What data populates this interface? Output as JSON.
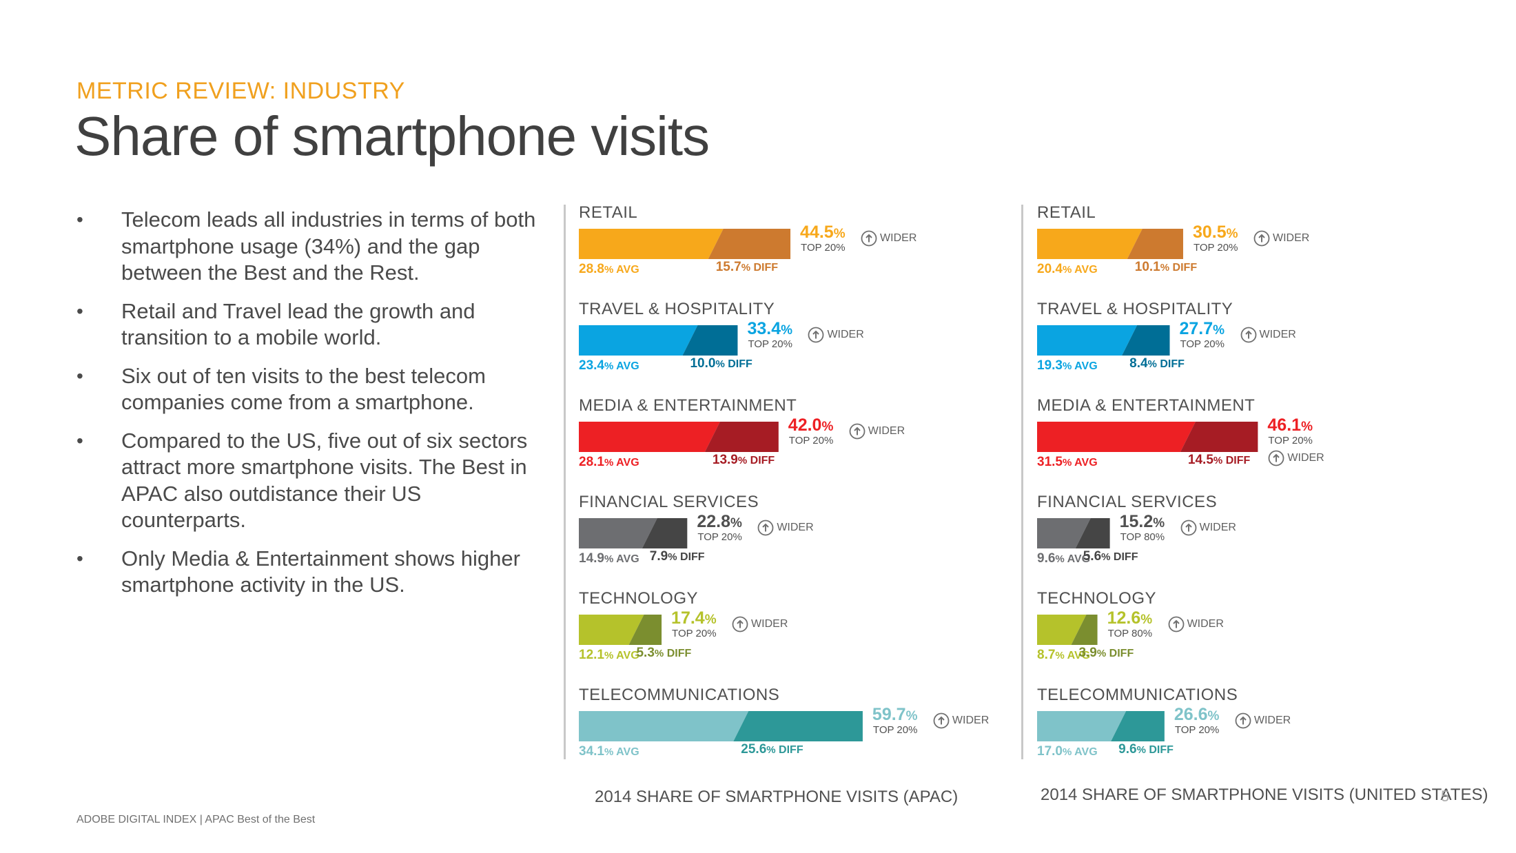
{
  "header": {
    "kicker": "METRIC REVIEW: INDUSTRY",
    "title": "Share of smartphone visits"
  },
  "bullets": [
    "Telecom leads all industries in terms of both smartphone usage (34%) and the gap between the Best and the Rest.",
    "Retail and Travel lead the growth and transition to a mobile world.",
    "Six out of ten visits to the best telecom companies come from a smartphone.",
    "Compared to the US, five out of six sectors attract more smartphone visits.  The Best in APAC also outdistance their US counterparts.",
    "Only Media & Entertainment shows higher smartphone activity in the US."
  ],
  "bullet_symbol": "•",
  "footer": "ADOBE DIGITAL INDEX | APAC Best of the Best",
  "page_number": "5",
  "chart_data": [
    {
      "type": "bar",
      "title": "2014 SHARE OF SMARTPHONE VISITS (APAC)",
      "series": [
        {
          "name": "AVG",
          "unit": "%"
        },
        {
          "name": "DIFF",
          "unit": "%"
        },
        {
          "name": "TOP",
          "unit": "%"
        }
      ],
      "categories": [
        {
          "name": "RETAIL",
          "avg": 28.8,
          "diff": 15.7,
          "top": 44.5,
          "top_label": "TOP 20%",
          "wider": "WIDER",
          "color": "#f7a81b",
          "dark": "#cd7a2f",
          "avg_text": "28.8",
          "diff_text": "15.7",
          "top_text": "44.5"
        },
        {
          "name": "TRAVEL & HOSPITALITY",
          "avg": 23.4,
          "diff": 10.0,
          "top": 33.4,
          "top_label": "TOP 20%",
          "wider": "WIDER",
          "color": "#0aa4e1",
          "dark": "#006e96",
          "avg_text": "23.4",
          "diff_text": "10.0",
          "top_text": "33.4"
        },
        {
          "name": "MEDIA & ENTERTAINMENT",
          "avg": 28.1,
          "diff": 13.9,
          "top": 42.0,
          "top_label": "TOP 20%",
          "wider": "WIDER",
          "color": "#ed2024",
          "dark": "#a61c24",
          "avg_text": "28.1",
          "diff_text": "13.9",
          "top_text": "42.0"
        },
        {
          "name": "FINANCIAL SERVICES",
          "avg": 14.9,
          "diff": 7.9,
          "top": 22.8,
          "top_label": "TOP 20%",
          "wider": "WIDER",
          "color": "#6d6e71",
          "dark": "#454545",
          "avg_text": "14.9",
          "diff_text": "7.9",
          "top_text": "22.8"
        },
        {
          "name": "TECHNOLOGY",
          "avg": 12.1,
          "diff": 5.3,
          "top": 17.4,
          "top_label": "TOP 20%",
          "wider": "WIDER",
          "color": "#b5c22b",
          "dark": "#7b8e2f",
          "avg_text": "12.1",
          "diff_text": "5.3",
          "top_text": "17.4"
        },
        {
          "name": "TELECOMMUNICATIONS",
          "avg": 34.1,
          "diff": 25.6,
          "top": 59.7,
          "top_label": "TOP 20%",
          "wider": "WIDER",
          "color": "#7fc3c9",
          "dark": "#2d9898",
          "avg_text": "34.1",
          "diff_text": "25.6",
          "top_text": "59.7"
        }
      ]
    },
    {
      "type": "bar",
      "title": "2014 SHARE OF SMARTPHONE VISITS (UNITED STATES)",
      "series": [
        {
          "name": "AVG",
          "unit": "%"
        },
        {
          "name": "DIFF",
          "unit": "%"
        },
        {
          "name": "TOP",
          "unit": "%"
        }
      ],
      "categories": [
        {
          "name": "RETAIL",
          "avg": 20.4,
          "diff": 10.1,
          "top": 30.5,
          "top_label": "TOP 20%",
          "wider": "WIDER",
          "color": "#f7a81b",
          "dark": "#cd7a2f",
          "avg_text": "20.4",
          "diff_text": "10.1",
          "top_text": "30.5"
        },
        {
          "name": "TRAVEL & HOSPITALITY",
          "avg": 19.3,
          "diff": 8.4,
          "top": 27.7,
          "top_label": "TOP 20%",
          "wider": "WIDER",
          "color": "#0aa4e1",
          "dark": "#006e96",
          "avg_text": "19.3",
          "diff_text": "8.4",
          "top_text": "27.7"
        },
        {
          "name": "MEDIA & ENTERTAINMENT",
          "avg": 31.5,
          "diff": 14.5,
          "top": 46.1,
          "top_label": "TOP 20%",
          "wider": "WIDER",
          "color": "#ed2024",
          "dark": "#a61c24",
          "avg_text": "31.5",
          "diff_text": "14.5",
          "top_text": "46.1"
        },
        {
          "name": "FINANCIAL SERVICES",
          "avg": 9.6,
          "diff": 5.6,
          "top": 15.2,
          "top_label": "TOP 80%",
          "wider": "WIDER",
          "color": "#6d6e71",
          "dark": "#454545",
          "avg_text": "9.6",
          "diff_text": "5.6",
          "top_text": "15.2"
        },
        {
          "name": "TECHNOLOGY",
          "avg": 8.7,
          "diff": 3.9,
          "top": 12.6,
          "top_label": "TOP 80%",
          "wider": "WIDER",
          "color": "#b5c22b",
          "dark": "#7b8e2f",
          "avg_text": "8.7",
          "diff_text": "3.9",
          "top_text": "12.6"
        },
        {
          "name": "TELECOMMUNICATIONS",
          "avg": 17.0,
          "diff": 9.6,
          "top": 26.6,
          "top_label": "TOP 20%",
          "wider": "WIDER",
          "color": "#7fc3c9",
          "dark": "#2d9898",
          "avg_text": "17.0",
          "diff_text": "9.6",
          "top_text": "26.6"
        }
      ]
    }
  ]
}
